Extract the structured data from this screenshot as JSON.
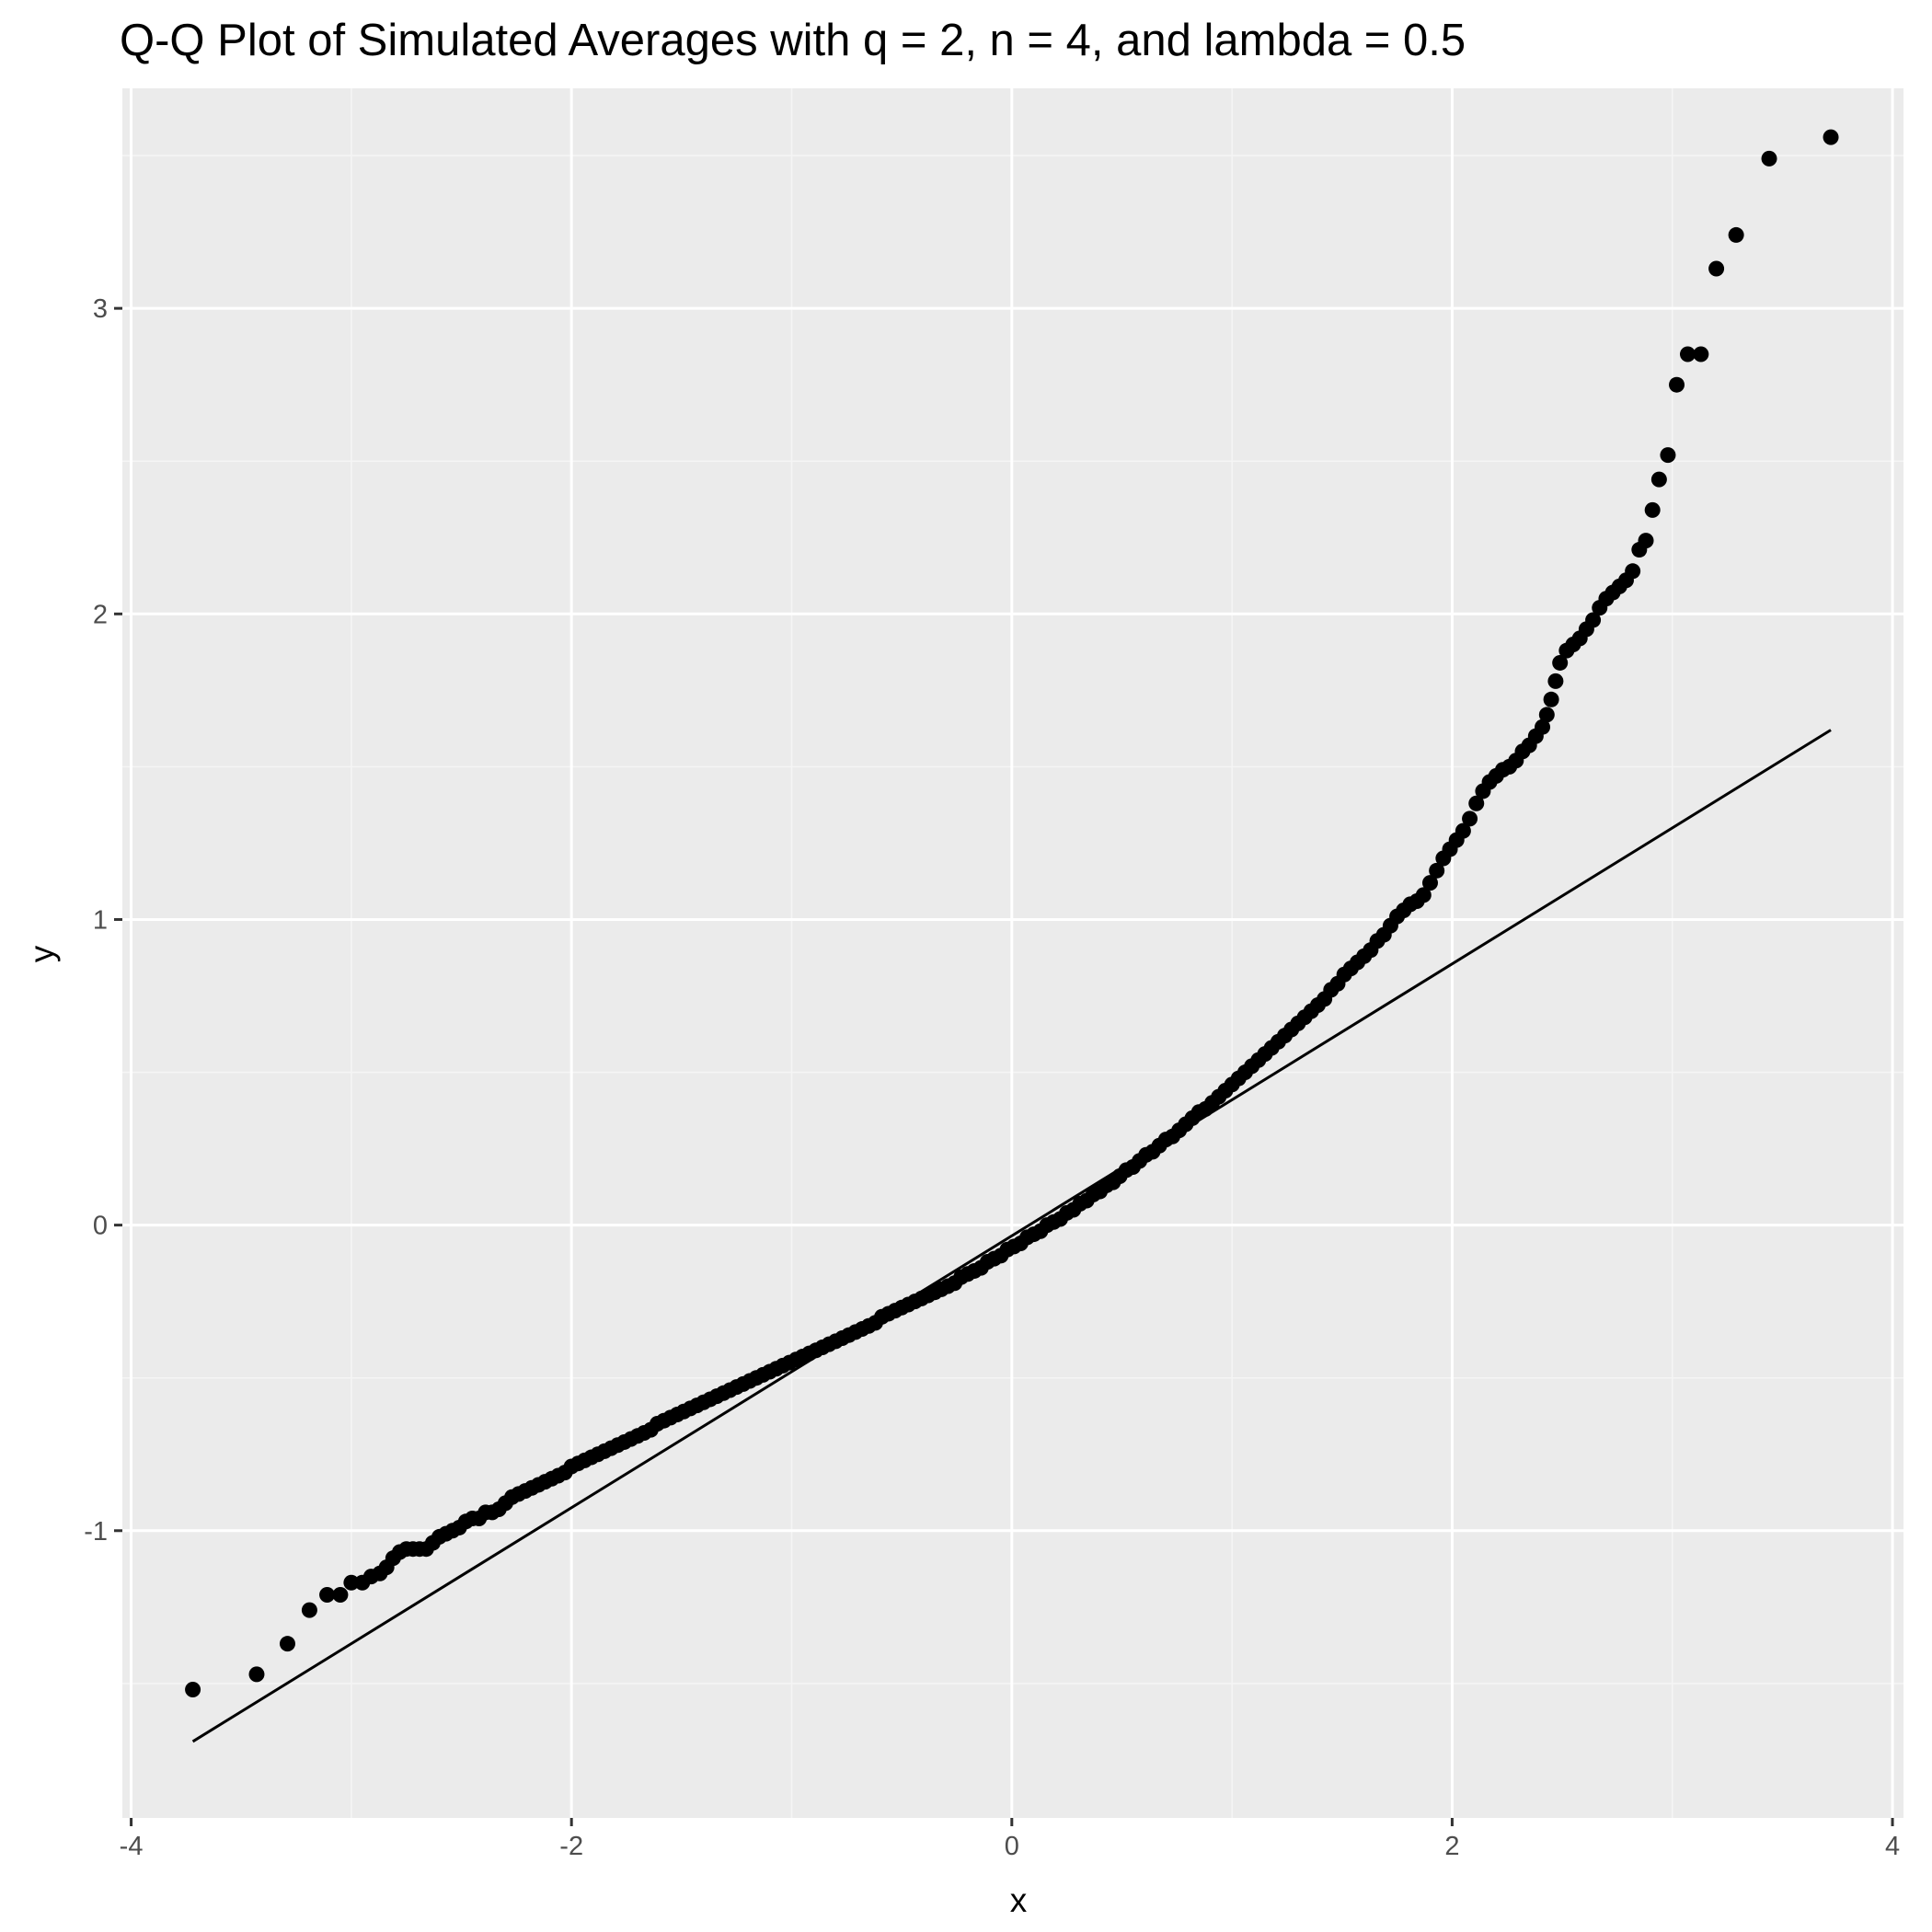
{
  "chart_data": {
    "type": "scatter",
    "title": "Q-Q Plot of Simulated Averages with q = 2, n = 4, and lambda = 0.5",
    "xlabel": "x",
    "ylabel": "y",
    "xlim": [
      -4.04,
      4.05
    ],
    "ylim": [
      -1.94,
      3.72
    ],
    "x_ticks": [
      -4,
      -2,
      0,
      2,
      4
    ],
    "x_tick_labels": [
      "-4",
      "-2",
      "0",
      "2",
      "4"
    ],
    "y_ticks": [
      -1,
      0,
      1,
      2,
      3
    ],
    "y_tick_labels": [
      "-1",
      "0",
      "1",
      "2",
      "3"
    ],
    "grid": true,
    "legend": "none",
    "colors": {
      "panel_background": "#ebebeb",
      "grid_major": "#ffffff",
      "grid_minor": "#f5f5f5",
      "points": "#000000",
      "reference_line": "#000000",
      "tick_text": "#4d4d4d"
    },
    "reference_line": {
      "x": [
        -3.72,
        3.72
      ],
      "y": [
        -1.69,
        1.62
      ]
    },
    "series": [
      {
        "points": [
          [
            -3.72,
            -1.52
          ],
          [
            -3.43,
            -1.47
          ],
          [
            -3.29,
            -1.37
          ],
          [
            -3.19,
            -1.26
          ],
          [
            -3.11,
            -1.21
          ],
          [
            -3.05,
            -1.21
          ],
          [
            -3.0,
            -1.17
          ],
          [
            -2.95,
            -1.17
          ],
          [
            -2.91,
            -1.15
          ],
          [
            -2.87,
            -1.14
          ],
          [
            -2.84,
            -1.12
          ],
          [
            -2.81,
            -1.09
          ],
          [
            -2.78,
            -1.07
          ],
          [
            -2.75,
            -1.06
          ],
          [
            -2.72,
            -1.06
          ],
          [
            -2.69,
            -1.06
          ],
          [
            -2.66,
            -1.06
          ],
          [
            -2.63,
            -1.04
          ],
          [
            -2.6,
            -1.02
          ],
          [
            -2.57,
            -1.01
          ],
          [
            -2.54,
            -1.0
          ],
          [
            -2.51,
            -0.99
          ],
          [
            -2.48,
            -0.97
          ],
          [
            -2.45,
            -0.96
          ],
          [
            -2.42,
            -0.96
          ],
          [
            -2.39,
            -0.94
          ],
          [
            -2.36,
            -0.94
          ],
          [
            -2.33,
            -0.93
          ],
          [
            -2.3,
            -0.91
          ],
          [
            -2.27,
            -0.89
          ],
          [
            -2.24,
            -0.88
          ],
          [
            -2.21,
            -0.87
          ],
          [
            -2.18,
            -0.86
          ],
          [
            -2.15,
            -0.85
          ],
          [
            -2.12,
            -0.84
          ],
          [
            -2.09,
            -0.83
          ],
          [
            -2.06,
            -0.82
          ],
          [
            -2.03,
            -0.81
          ],
          [
            -2.0,
            -0.79
          ],
          [
            -1.97,
            -0.78
          ],
          [
            -1.94,
            -0.77
          ],
          [
            -1.91,
            -0.76
          ],
          [
            -1.88,
            -0.75
          ],
          [
            -1.85,
            -0.74
          ],
          [
            -1.82,
            -0.73
          ],
          [
            -1.79,
            -0.72
          ],
          [
            -1.76,
            -0.71
          ],
          [
            -1.73,
            -0.7
          ],
          [
            -1.7,
            -0.69
          ],
          [
            -1.67,
            -0.68
          ],
          [
            -1.64,
            -0.67
          ],
          [
            -1.61,
            -0.65
          ],
          [
            -1.58,
            -0.64
          ],
          [
            -1.55,
            -0.63
          ],
          [
            -1.52,
            -0.62
          ],
          [
            -1.49,
            -0.61
          ],
          [
            -1.46,
            -0.6
          ],
          [
            -1.43,
            -0.59
          ],
          [
            -1.4,
            -0.58
          ],
          [
            -1.37,
            -0.57
          ],
          [
            -1.34,
            -0.56
          ],
          [
            -1.31,
            -0.55
          ],
          [
            -1.28,
            -0.54
          ],
          [
            -1.25,
            -0.53
          ],
          [
            -1.22,
            -0.52
          ],
          [
            -1.19,
            -0.51
          ],
          [
            -1.16,
            -0.5
          ],
          [
            -1.13,
            -0.49
          ],
          [
            -1.1,
            -0.48
          ],
          [
            -1.07,
            -0.47
          ],
          [
            -1.04,
            -0.46
          ],
          [
            -1.01,
            -0.45
          ],
          [
            -0.98,
            -0.44
          ],
          [
            -0.95,
            -0.43
          ],
          [
            -0.92,
            -0.42
          ],
          [
            -0.89,
            -0.41
          ],
          [
            -0.86,
            -0.4
          ],
          [
            -0.83,
            -0.39
          ],
          [
            -0.8,
            -0.38
          ],
          [
            -0.77,
            -0.37
          ],
          [
            -0.74,
            -0.36
          ],
          [
            -0.71,
            -0.35
          ],
          [
            -0.68,
            -0.34
          ],
          [
            -0.65,
            -0.33
          ],
          [
            -0.62,
            -0.32
          ],
          [
            -0.59,
            -0.3
          ],
          [
            -0.56,
            -0.29
          ],
          [
            -0.53,
            -0.28
          ],
          [
            -0.5,
            -0.27
          ],
          [
            -0.47,
            -0.26
          ],
          [
            -0.44,
            -0.25
          ],
          [
            -0.41,
            -0.24
          ],
          [
            -0.38,
            -0.23
          ],
          [
            -0.35,
            -0.22
          ],
          [
            -0.32,
            -0.21
          ],
          [
            -0.29,
            -0.2
          ],
          [
            -0.26,
            -0.19
          ],
          [
            -0.23,
            -0.17
          ],
          [
            -0.2,
            -0.16
          ],
          [
            -0.17,
            -0.15
          ],
          [
            -0.14,
            -0.14
          ],
          [
            -0.11,
            -0.12
          ],
          [
            -0.08,
            -0.11
          ],
          [
            -0.05,
            -0.1
          ],
          [
            -0.02,
            -0.08
          ],
          [
            0.01,
            -0.07
          ],
          [
            0.04,
            -0.06
          ],
          [
            0.07,
            -0.04
          ],
          [
            0.1,
            -0.03
          ],
          [
            0.13,
            -0.02
          ],
          [
            0.16,
            0.0
          ],
          [
            0.19,
            0.01
          ],
          [
            0.22,
            0.02
          ],
          [
            0.25,
            0.04
          ],
          [
            0.28,
            0.05
          ],
          [
            0.31,
            0.07
          ],
          [
            0.34,
            0.08
          ],
          [
            0.37,
            0.1
          ],
          [
            0.4,
            0.11
          ],
          [
            0.43,
            0.13
          ],
          [
            0.46,
            0.14
          ],
          [
            0.49,
            0.16
          ],
          [
            0.52,
            0.18
          ],
          [
            0.55,
            0.19
          ],
          [
            0.58,
            0.21
          ],
          [
            0.61,
            0.23
          ],
          [
            0.64,
            0.24
          ],
          [
            0.67,
            0.26
          ],
          [
            0.7,
            0.28
          ],
          [
            0.73,
            0.29
          ],
          [
            0.76,
            0.31
          ],
          [
            0.79,
            0.33
          ],
          [
            0.82,
            0.35
          ],
          [
            0.85,
            0.37
          ],
          [
            0.88,
            0.38
          ],
          [
            0.91,
            0.4
          ],
          [
            0.94,
            0.42
          ],
          [
            0.97,
            0.44
          ],
          [
            1.0,
            0.46
          ],
          [
            1.03,
            0.48
          ],
          [
            1.06,
            0.5
          ],
          [
            1.09,
            0.52
          ],
          [
            1.12,
            0.54
          ],
          [
            1.15,
            0.56
          ],
          [
            1.18,
            0.58
          ],
          [
            1.21,
            0.6
          ],
          [
            1.24,
            0.62
          ],
          [
            1.27,
            0.64
          ],
          [
            1.3,
            0.66
          ],
          [
            1.33,
            0.68
          ],
          [
            1.36,
            0.7
          ],
          [
            1.39,
            0.72
          ],
          [
            1.42,
            0.74
          ],
          [
            1.45,
            0.77
          ],
          [
            1.48,
            0.79
          ],
          [
            1.51,
            0.82
          ],
          [
            1.54,
            0.84
          ],
          [
            1.57,
            0.86
          ],
          [
            1.6,
            0.88
          ],
          [
            1.63,
            0.9
          ],
          [
            1.66,
            0.93
          ],
          [
            1.69,
            0.95
          ],
          [
            1.72,
            0.98
          ],
          [
            1.75,
            1.01
          ],
          [
            1.78,
            1.03
          ],
          [
            1.81,
            1.05
          ],
          [
            1.84,
            1.06
          ],
          [
            1.87,
            1.08
          ],
          [
            1.9,
            1.12
          ],
          [
            1.93,
            1.16
          ],
          [
            1.96,
            1.2
          ],
          [
            1.99,
            1.23
          ],
          [
            2.02,
            1.26
          ],
          [
            2.05,
            1.29
          ],
          [
            2.08,
            1.33
          ],
          [
            2.11,
            1.38
          ],
          [
            2.14,
            1.42
          ],
          [
            2.17,
            1.45
          ],
          [
            2.2,
            1.47
          ],
          [
            2.23,
            1.49
          ],
          [
            2.26,
            1.5
          ],
          [
            2.29,
            1.52
          ],
          [
            2.32,
            1.55
          ],
          [
            2.35,
            1.57
          ],
          [
            2.38,
            1.6
          ],
          [
            2.41,
            1.63
          ],
          [
            2.43,
            1.67
          ],
          [
            2.45,
            1.72
          ],
          [
            2.47,
            1.78
          ],
          [
            2.49,
            1.84
          ],
          [
            2.52,
            1.88
          ],
          [
            2.55,
            1.9
          ],
          [
            2.58,
            1.92
          ],
          [
            2.61,
            1.95
          ],
          [
            2.64,
            1.98
          ],
          [
            2.67,
            2.02
          ],
          [
            2.7,
            2.05
          ],
          [
            2.73,
            2.07
          ],
          [
            2.76,
            2.09
          ],
          [
            2.79,
            2.11
          ],
          [
            2.82,
            2.14
          ],
          [
            2.85,
            2.21
          ],
          [
            2.88,
            2.24
          ],
          [
            2.91,
            2.34
          ],
          [
            2.94,
            2.44
          ],
          [
            2.98,
            2.52
          ],
          [
            3.02,
            2.75
          ],
          [
            3.07,
            2.85
          ],
          [
            3.13,
            2.85
          ],
          [
            3.2,
            3.13
          ],
          [
            3.29,
            3.24
          ],
          [
            3.44,
            3.49
          ],
          [
            3.72,
            3.56
          ]
        ]
      }
    ]
  }
}
